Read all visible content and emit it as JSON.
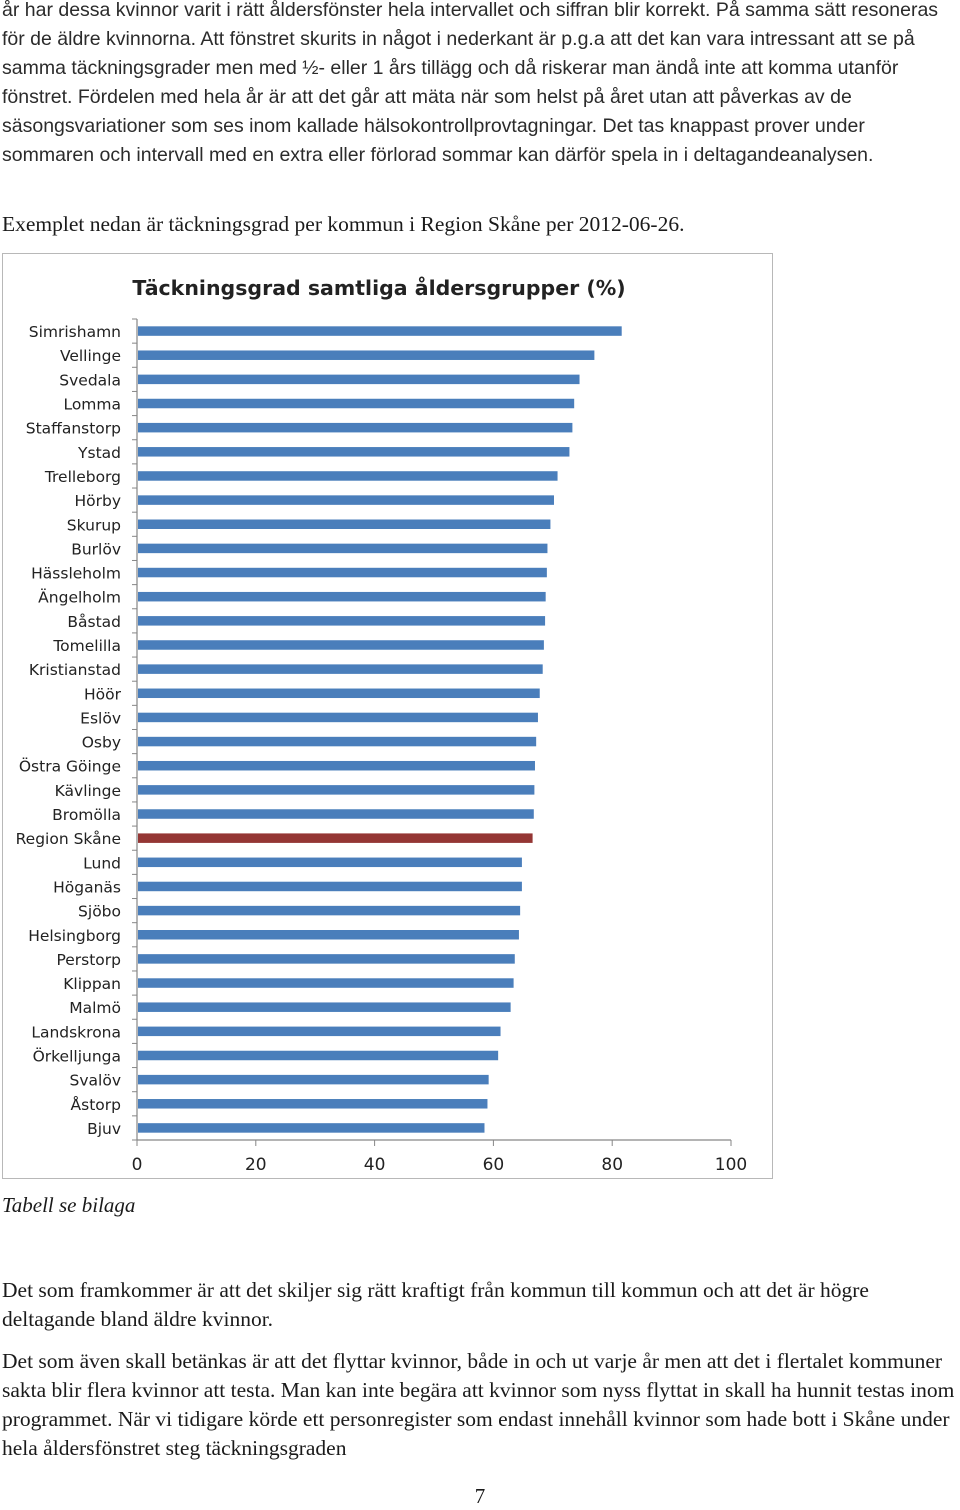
{
  "paragraphs": {
    "p1": "år har dessa kvinnor varit i rätt åldersfönster hela intervallet och siffran blir korrekt. På samma sätt resoneras för de äldre kvinnorna. Att fönstret skurits in något i nederkant är p.g.a att det kan vara intressant att se på samma täckningsgrader men med ½- eller 1 års tillägg och då riskerar man ändå inte att komma utanför fönstret. Fördelen med hela år är att det går att mäta när som helst på året utan att påverkas av de säsongsvariationer som ses inom kallade hälsokontrollprovtagningar. Det tas knappast prover under sommaren och intervall med en extra eller förlorad sommar kan därför spela in i deltagandeanalysen.",
    "p2": "Exemplet nedan är täckningsgrad per kommun i Region Skåne per 2012-06-26.",
    "caption": "Tabell se bilaga",
    "p3": "Det som framkommer är att det skiljer sig rätt kraftigt från kommun till kommun och att det är högre deltagande bland äldre kvinnor.",
    "p4": "Det som även skall betänkas är att det flyttar kvinnor, både in och ut varje år men att det i flertalet kommuner sakta blir flera kvinnor att testa. Man kan inte begära att kvinnor som nyss flyttat in skall ha hunnit testas inom programmet. När vi tidigare körde ett personregister som endast innehåll kvinnor som hade bott i Skåne under hela åldersfönstret steg täckningsgraden"
  },
  "page_number": "7",
  "colors": {
    "bar": "#4a7ebb",
    "highlight": "#943634",
    "axis": "#868686"
  },
  "chart_data": {
    "type": "bar",
    "orientation": "horizontal",
    "title": "Täckningsgrad samtliga åldersgrupper (%)",
    "xlim": [
      0,
      100
    ],
    "xticks": [
      "0",
      "20",
      "40",
      "60",
      "80",
      "100"
    ],
    "grid": false,
    "highlight_category": "Region Skåne",
    "categories": [
      "Simrishamn",
      "Vellinge",
      "Svedala",
      "Lomma",
      "Staffanstorp",
      "Ystad",
      "Trelleborg",
      "Hörby",
      "Skurup",
      "Burlöv",
      "Hässleholm",
      "Ängelholm",
      "Båstad",
      "Tomelilla",
      "Kristianstad",
      "Höör",
      "Eslöv",
      "Osby",
      "Östra Göinge",
      "Kävlinge",
      "Bromölla",
      "Region Skåne",
      "Lund",
      "Höganäs",
      "Sjöbo",
      "Helsingborg",
      "Perstorp",
      "Klippan",
      "Malmö",
      "Landskrona",
      "Örkelljunga",
      "Svalöv",
      "Åstorp",
      "Bjuv"
    ],
    "values": [
      81.6,
      77,
      74.5,
      73.6,
      73.3,
      72.8,
      70.8,
      70.2,
      69.6,
      69.1,
      69,
      68.8,
      68.7,
      68.5,
      68.3,
      67.8,
      67.5,
      67.2,
      67.0,
      66.9,
      66.8,
      66.6,
      64.8,
      64.8,
      64.5,
      64.3,
      63.6,
      63.4,
      62.9,
      61.2,
      60.8,
      59.2,
      59.0,
      58.5
    ]
  }
}
